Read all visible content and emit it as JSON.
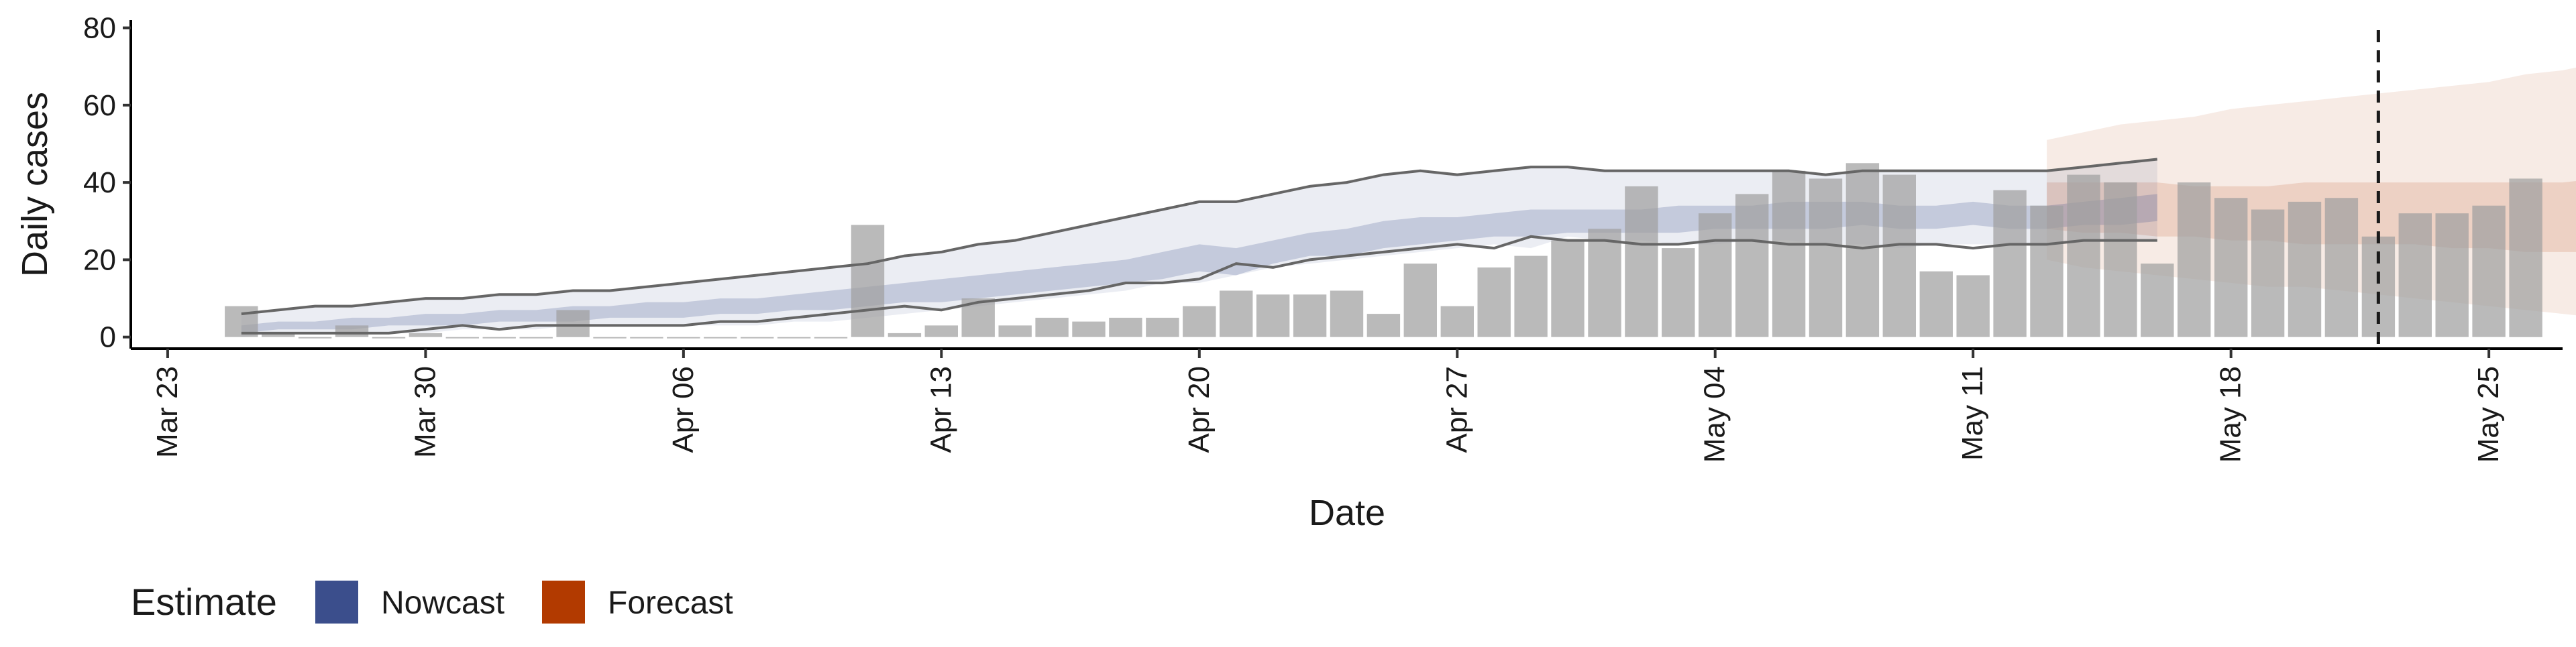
{
  "chart_data": {
    "type": "bar",
    "xlabel": "Date",
    "ylabel": "Daily cases",
    "ylim": [
      -3,
      82
    ],
    "xlim": [
      "2020-03-22",
      "2020-05-27"
    ],
    "x_ticks": [
      "2020-03-23",
      "2020-03-30",
      "2020-04-06",
      "2020-04-13",
      "2020-04-20",
      "2020-04-27",
      "2020-05-04",
      "2020-05-11",
      "2020-05-18",
      "2020-05-25"
    ],
    "x_tick_labels": [
      "Mar 23",
      "Mar 30",
      "Apr 06",
      "Apr 13",
      "Apr 20",
      "Apr 27",
      "May 04",
      "May 11",
      "May 18",
      "May 25"
    ],
    "y_ticks": [
      0,
      20,
      40,
      60,
      80
    ],
    "vline_date": "2020-05-22",
    "grid": false,
    "legend": {
      "title": "Estimate",
      "placement": "bottom-left",
      "entries": [
        {
          "label": "Nowcast",
          "color": "#3b4e8c"
        },
        {
          "label": "Forecast",
          "color": "#b23a00"
        }
      ]
    },
    "colors": {
      "bars": "#bdbdbd",
      "nowcast": "#3b4e8c",
      "forecast": "#b23a00",
      "vline": "#1a1a1a",
      "ci_line": "#666666"
    },
    "bars_start_date": "2020-03-25",
    "bars": [
      8,
      1,
      0,
      3,
      0,
      1,
      0,
      0,
      0,
      7,
      0,
      0,
      0,
      0,
      0,
      0,
      0,
      29,
      1,
      3,
      10,
      3,
      5,
      4,
      5,
      5,
      8,
      12,
      11,
      11,
      12,
      6,
      19,
      8,
      18,
      21,
      25,
      28,
      39,
      23,
      32,
      37,
      43,
      41,
      45,
      42,
      17,
      16,
      38,
      34,
      42,
      40,
      19,
      40,
      36,
      33,
      35,
      36,
      26,
      32,
      32,
      34,
      41
    ],
    "nowcast_start_date": "2020-03-25",
    "nowcast_90_upper": [
      6,
      7,
      8,
      8,
      9,
      10,
      10,
      11,
      11,
      12,
      12,
      13,
      14,
      15,
      16,
      17,
      18,
      19,
      21,
      22,
      24,
      25,
      27,
      29,
      31,
      33,
      35,
      35,
      37,
      39,
      40,
      42,
      43,
      42,
      43,
      44,
      44,
      43,
      43,
      43,
      43,
      43,
      43,
      42,
      43,
      43,
      43,
      43,
      43,
      43,
      44,
      45,
      46
    ],
    "nowcast_90_lower": [
      0,
      1,
      1,
      1,
      1,
      1,
      2,
      2,
      2,
      3,
      3,
      3,
      3,
      3,
      3,
      4,
      4,
      5,
      6,
      7,
      8,
      9,
      10,
      11,
      12,
      14,
      14,
      16,
      18,
      19,
      20,
      21,
      22,
      23,
      24,
      23,
      26,
      25,
      25,
      24,
      24,
      25,
      25,
      24,
      24,
      23,
      24,
      24,
      24,
      24,
      25,
      25,
      25
    ],
    "nowcast_50_upper": [
      3,
      4,
      4,
      5,
      5,
      6,
      6,
      7,
      7,
      8,
      8,
      9,
      9,
      10,
      10,
      11,
      12,
      13,
      14,
      15,
      16,
      17,
      18,
      19,
      20,
      22,
      24,
      23,
      25,
      27,
      28,
      30,
      31,
      31,
      32,
      33,
      33,
      33,
      33,
      34,
      34,
      34,
      35,
      35,
      35,
      34,
      34,
      35,
      34,
      34,
      35,
      36,
      37
    ],
    "nowcast_50_lower": [
      1,
      2,
      2,
      2,
      3,
      3,
      3,
      4,
      4,
      4,
      5,
      5,
      5,
      6,
      6,
      7,
      7,
      8,
      9,
      9,
      10,
      11,
      12,
      13,
      14,
      15,
      17,
      16,
      19,
      21,
      21,
      23,
      24,
      25,
      26,
      26,
      27,
      27,
      27,
      27,
      28,
      28,
      28,
      28,
      29,
      28,
      28,
      29,
      28,
      28,
      29,
      29,
      30
    ],
    "nowcast_line_upper": [
      6,
      7,
      8,
      8,
      9,
      10,
      10,
      11,
      11,
      12,
      12,
      13,
      14,
      15,
      16,
      17,
      18,
      19,
      21,
      22,
      24,
      25,
      27,
      29,
      31,
      33,
      35,
      35,
      37,
      39,
      40,
      42,
      43,
      42,
      43,
      44,
      44,
      43,
      43,
      43,
      43,
      43,
      43,
      42,
      43,
      43,
      43,
      43,
      43,
      43,
      44,
      45,
      46
    ],
    "nowcast_line_lower": [
      1,
      1,
      1,
      1,
      1,
      2,
      3,
      2,
      3,
      3,
      3,
      3,
      3,
      4,
      4,
      5,
      6,
      7,
      8,
      7,
      9,
      10,
      11,
      12,
      14,
      14,
      15,
      19,
      18,
      20,
      21,
      22,
      23,
      24,
      23,
      26,
      25,
      25,
      24,
      24,
      25,
      25,
      24,
      24,
      23,
      24,
      24,
      23,
      24,
      24,
      25,
      25,
      25
    ],
    "forecast_start_date": "2020-05-13",
    "forecast_90_upper": [
      51,
      53,
      55,
      56,
      57,
      59,
      60,
      61,
      62,
      63,
      64,
      65,
      66,
      68,
      69,
      71,
      73,
      75,
      76,
      78,
      77,
      75
    ],
    "forecast_90_lower": [
      20,
      18,
      17,
      16,
      15,
      14,
      13,
      13,
      12,
      11,
      10,
      9,
      8,
      7,
      6,
      5,
      5,
      5,
      5,
      5,
      3,
      0
    ],
    "forecast_50_upper": [
      40,
      40,
      40,
      40,
      39,
      39,
      39,
      40,
      40,
      40,
      40,
      40,
      40,
      40,
      40,
      41,
      41,
      40,
      40,
      40,
      40,
      41
    ],
    "forecast_50_lower": [
      28,
      27,
      27,
      26,
      26,
      25,
      25,
      24,
      24,
      24,
      24,
      23,
      23,
      22,
      22,
      22,
      22,
      22,
      22,
      22,
      22,
      22
    ]
  }
}
